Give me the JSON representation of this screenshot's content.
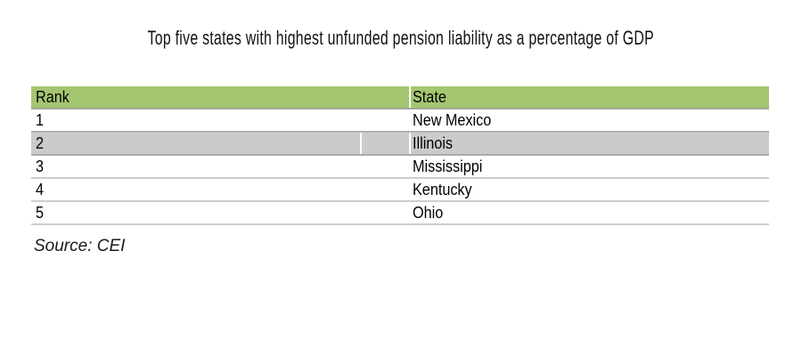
{
  "chart_data": {
    "type": "table",
    "title": "Top five states with highest unfunded pension liability as a percentage of GDP",
    "columns": [
      "Rank",
      "State"
    ],
    "rows": [
      [
        "1",
        "New Mexico"
      ],
      [
        "2",
        "Illinois"
      ],
      [
        "3",
        "Mississippi"
      ],
      [
        "4",
        "Kentucky"
      ],
      [
        "5",
        "Ohio"
      ]
    ],
    "highlighted_row": "Illinois",
    "source": "Source: CEI",
    "layout": {
      "legend": "none",
      "grid": "horizontal-row-separators"
    }
  },
  "colors": {
    "header_green": "#a5c671",
    "highlight_gray": "#cbcbcb",
    "row_separator": "#cdcdcd",
    "cell_divider_white": "#ffffff",
    "text_black": "#000000"
  }
}
